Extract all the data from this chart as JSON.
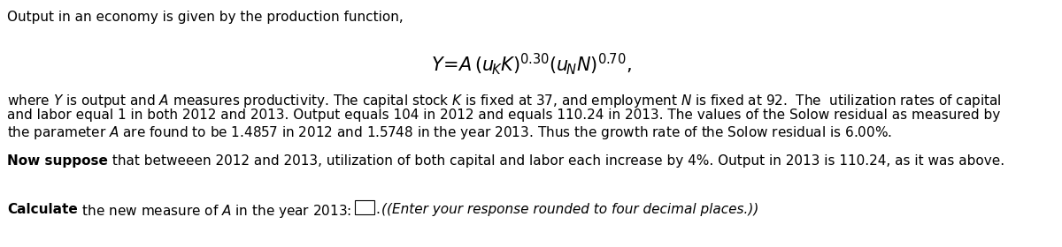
{
  "bg_color": "#ffffff",
  "text_color": "#000000",
  "line1": "Output in an economy is given by the production function,",
  "para1_line1": "where $Y$ is output and $A$ measures productivity. The capital stock $K$ is fixed at 37, and employment $N$ is fixed at 92.  The  utilization rates of capital",
  "para1_line2": "and labor equal 1 in both 2012 and 2013. Output equals 104 in 2012 and equals 110.24 in 2013. The values of the Solow residual as measured by",
  "para1_line3": "the parameter $A$ are found to be 1.4857 in 2012 and 1.5748 in the year 2013. Thus the growth rate of the Solow residual is 6.00%.",
  "para2_bold": "Now suppose",
  "para2_rest": " that betweeen 2012 and 2013, utilization of both capital and labor each increase by 4%. Output in 2013 is 110.24, as it was above.",
  "para3_bold": "Calculate",
  "para3_rest": " the new measure of $A$ in the year 2013:",
  "para3_italic": "(Enter your response rounded to four decimal places.)",
  "font_size_main": 11.0,
  "font_size_formula": 15.0
}
